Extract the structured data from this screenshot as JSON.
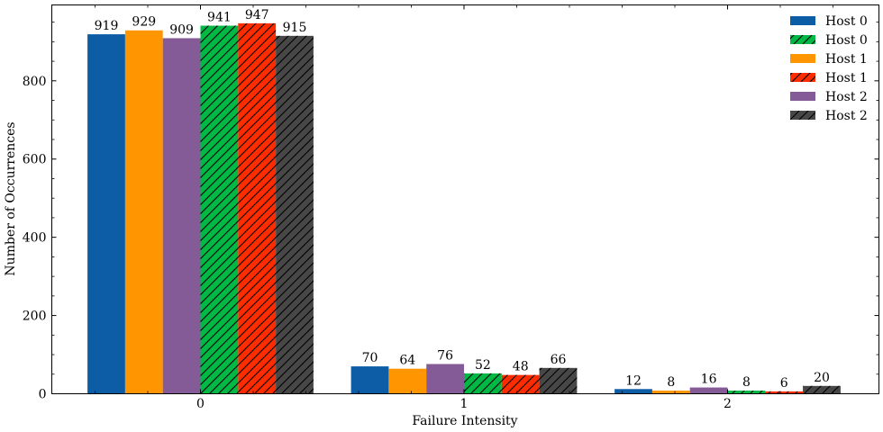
{
  "chart_data": {
    "type": "bar",
    "categories": [
      "0",
      "1",
      "2"
    ],
    "series": [
      {
        "name": "Host 0",
        "values": [
          919,
          70,
          12
        ],
        "color": "#0c5da5",
        "hatch": false
      },
      {
        "name": "Host 1",
        "values": [
          929,
          64,
          8
        ],
        "color": "#ff9500",
        "hatch": false
      },
      {
        "name": "Host 2",
        "values": [
          909,
          76,
          16
        ],
        "color": "#845b97",
        "hatch": false
      },
      {
        "name": "Host 0",
        "values": [
          941,
          52,
          8
        ],
        "color": "#00b945",
        "hatch": true
      },
      {
        "name": "Host 1",
        "values": [
          947,
          48,
          6
        ],
        "color": "#ff2c00",
        "hatch": true
      },
      {
        "name": "Host 2",
        "values": [
          915,
          66,
          20
        ],
        "color": "#474747",
        "hatch": true
      }
    ],
    "legend_order": [
      0,
      3,
      1,
      4,
      2,
      5
    ],
    "xlabel": "Failure Intensity",
    "ylabel": "Number of Occurrences",
    "ylim": [
      0,
      994
    ],
    "yticks": [
      0,
      200,
      400,
      600,
      800
    ],
    "legend_position": "top-right",
    "grid": false
  }
}
